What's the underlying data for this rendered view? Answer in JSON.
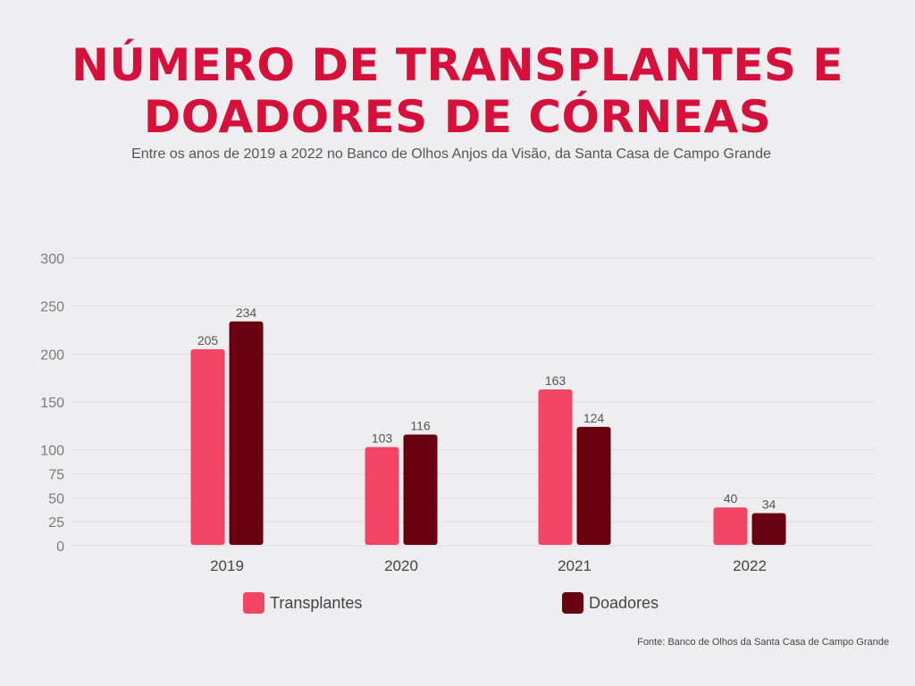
{
  "title": {
    "line1": "NÚMERO DE TRANSPLANTES E",
    "line2": "DOADORES DE CÓRNEAS"
  },
  "subtitle": "Entre os anos de 2019 a 2022 no Banco de Olhos Anjos da Visão, da Santa Casa de Campo Grande",
  "source": "Fonte: Banco de Olhos da Santa Casa de Campo Grande",
  "colors": {
    "title": "#d5103a",
    "transplantes": "#f24463",
    "doadores": "#690010",
    "grid": "#dcdce0",
    "tick_text": "#7a7a7a",
    "category_text": "#444444",
    "label_text": "#555555"
  },
  "legend": [
    {
      "name": "Transplantes",
      "color": "#f24463"
    },
    {
      "name": "Doadores",
      "color": "#690010"
    }
  ],
  "chart_data": {
    "type": "bar",
    "categories": [
      "2019",
      "2020",
      "2021",
      "2022"
    ],
    "series": [
      {
        "name": "Transplantes",
        "color": "#f24463",
        "values": [
          205,
          103,
          163,
          40
        ]
      },
      {
        "name": "Doadores",
        "color": "#690010",
        "values": [
          234,
          116,
          124,
          34
        ]
      }
    ],
    "ylim": [
      0,
      300
    ],
    "yticks": [
      0,
      25,
      50,
      75,
      100,
      150,
      200,
      250,
      300
    ],
    "grid": true,
    "legend_position": "bottom"
  }
}
